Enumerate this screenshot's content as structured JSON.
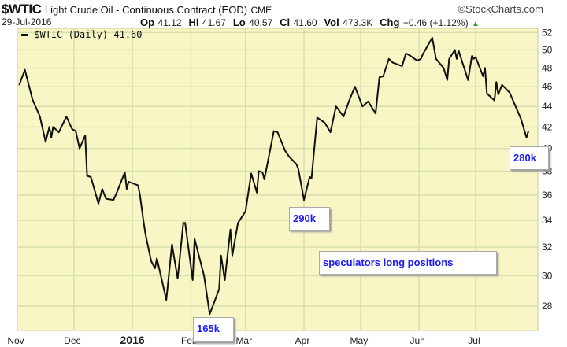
{
  "header": {
    "symbol": "$WTIC",
    "description": "Light Crude Oil - Continuous Contract (EOD)",
    "exchange": "CME",
    "source": "©StockCharts.com",
    "date": "29-Jul-2016",
    "stats": [
      {
        "label": "Op",
        "value": "41.12"
      },
      {
        "label": "Hi",
        "value": "41.67"
      },
      {
        "label": "Lo",
        "value": "40.57"
      },
      {
        "label": "Cl",
        "value": "41.60"
      },
      {
        "label": "Vol",
        "value": "473.3K"
      },
      {
        "label": "Chg",
        "value": "+0.46 (+1.12%)"
      }
    ],
    "change_direction": "up"
  },
  "colors": {
    "background": "#f8f6c4",
    "grid": "#d8dfae",
    "line": "#111111",
    "annotation_text": "#1a1aff",
    "up_arrow": "#2e9e2e"
  },
  "chart_data": {
    "type": "line",
    "title": "",
    "legend": {
      "text": "$WTIC (Daily) 41.60",
      "placement": "top-left"
    },
    "y_scale": "log",
    "ylim": [
      26.5,
      52.5
    ],
    "y_ticks": [
      28,
      30,
      32,
      34,
      36,
      38,
      40,
      42,
      44,
      46,
      48,
      50,
      52
    ],
    "y_axis_side": "right",
    "xlim": [
      "2015-11-01",
      "2016-08-03"
    ],
    "x_ticks": [
      {
        "label": "Nov",
        "date": "2015-11-01",
        "bold": false
      },
      {
        "label": "Dec",
        "date": "2015-12-01",
        "bold": false
      },
      {
        "label": "2016",
        "date": "2016-01-01",
        "bold": true
      },
      {
        "label": "Feb",
        "date": "2016-02-01",
        "bold": false
      },
      {
        "label": "Mar",
        "date": "2016-03-01",
        "bold": false
      },
      {
        "label": "Apr",
        "date": "2016-04-01",
        "bold": false
      },
      {
        "label": "May",
        "date": "2016-05-01",
        "bold": false
      },
      {
        "label": "Jun",
        "date": "2016-06-01",
        "bold": false
      },
      {
        "label": "Jul",
        "date": "2016-07-01",
        "bold": false
      }
    ],
    "grid": true,
    "series": [
      {
        "name": "$WTIC (Daily)",
        "points": [
          [
            "2015-11-02",
            46.2
          ],
          [
            "2015-11-05",
            47.8
          ],
          [
            "2015-11-09",
            44.7
          ],
          [
            "2015-11-13",
            43.0
          ],
          [
            "2015-11-16",
            40.6
          ],
          [
            "2015-11-18",
            42.0
          ],
          [
            "2015-11-19",
            41.0
          ],
          [
            "2015-11-20",
            42.0
          ],
          [
            "2015-11-23",
            41.5
          ],
          [
            "2015-11-27",
            43.0
          ],
          [
            "2015-11-30",
            41.8
          ],
          [
            "2015-12-02",
            41.6
          ],
          [
            "2015-12-04",
            40.0
          ],
          [
            "2015-12-07",
            41.2
          ],
          [
            "2015-12-08",
            37.6
          ],
          [
            "2015-12-10",
            37.5
          ],
          [
            "2015-12-14",
            35.3
          ],
          [
            "2015-12-16",
            36.5
          ],
          [
            "2015-12-18",
            35.7
          ],
          [
            "2015-12-22",
            35.6
          ],
          [
            "2015-12-24",
            36.3
          ],
          [
            "2015-12-28",
            37.9
          ],
          [
            "2015-12-29",
            36.5
          ],
          [
            "2015-12-30",
            37.1
          ],
          [
            "2016-01-04",
            36.8
          ],
          [
            "2016-01-05",
            36.0
          ],
          [
            "2016-01-07",
            33.8
          ],
          [
            "2016-01-08",
            32.9
          ],
          [
            "2016-01-11",
            31.0
          ],
          [
            "2016-01-13",
            30.5
          ],
          [
            "2016-01-14",
            31.2
          ],
          [
            "2016-01-19",
            28.4
          ],
          [
            "2016-01-22",
            32.2
          ],
          [
            "2016-01-25",
            29.8
          ],
          [
            "2016-01-28",
            33.8
          ],
          [
            "2016-01-29",
            33.8
          ],
          [
            "2016-02-02",
            29.7
          ],
          [
            "2016-02-03",
            32.6
          ],
          [
            "2016-02-08",
            30.0
          ],
          [
            "2016-02-11",
            27.5
          ],
          [
            "2016-02-16",
            29.1
          ],
          [
            "2016-02-17",
            31.4
          ],
          [
            "2016-02-19",
            29.7
          ],
          [
            "2016-02-22",
            33.3
          ],
          [
            "2016-02-23",
            31.4
          ],
          [
            "2016-02-25",
            33.0
          ],
          [
            "2016-02-26",
            33.8
          ],
          [
            "2016-03-01",
            34.7
          ],
          [
            "2016-03-04",
            37.8
          ],
          [
            "2016-03-07",
            36.2
          ],
          [
            "2016-03-08",
            38.0
          ],
          [
            "2016-03-10",
            37.9
          ],
          [
            "2016-03-11",
            37.3
          ],
          [
            "2016-03-16",
            41.6
          ],
          [
            "2016-03-18",
            41.5
          ],
          [
            "2016-03-22",
            39.8
          ],
          [
            "2016-03-24",
            39.3
          ],
          [
            "2016-03-28",
            38.6
          ],
          [
            "2016-03-29",
            38.2
          ],
          [
            "2016-04-01",
            35.6
          ],
          [
            "2016-04-04",
            37.5
          ],
          [
            "2016-04-05",
            37.4
          ],
          [
            "2016-04-08",
            42.9
          ],
          [
            "2016-04-12",
            42.4
          ],
          [
            "2016-04-15",
            41.5
          ],
          [
            "2016-04-18",
            44.0
          ],
          [
            "2016-04-22",
            43.0
          ],
          [
            "2016-04-25",
            44.6
          ],
          [
            "2016-04-28",
            46.0
          ],
          [
            "2016-05-02",
            44.0
          ],
          [
            "2016-05-05",
            44.5
          ],
          [
            "2016-05-09",
            43.3
          ],
          [
            "2016-05-11",
            47.0
          ],
          [
            "2016-05-13",
            47.1
          ],
          [
            "2016-05-16",
            49.0
          ],
          [
            "2016-05-18",
            48.6
          ],
          [
            "2016-05-23",
            48.2
          ],
          [
            "2016-05-25",
            49.6
          ],
          [
            "2016-05-27",
            49.4
          ],
          [
            "2016-05-31",
            48.8
          ],
          [
            "2016-06-02",
            49.0
          ],
          [
            "2016-06-03",
            49.5
          ],
          [
            "2016-06-08",
            51.4
          ],
          [
            "2016-06-10",
            49.0
          ],
          [
            "2016-06-14",
            48.0
          ],
          [
            "2016-06-16",
            46.7
          ],
          [
            "2016-06-17",
            49.0
          ],
          [
            "2016-06-20",
            50.0
          ],
          [
            "2016-06-21",
            49.0
          ],
          [
            "2016-06-22",
            49.9
          ],
          [
            "2016-06-27",
            46.7
          ],
          [
            "2016-06-29",
            49.3
          ],
          [
            "2016-06-30",
            49.0
          ],
          [
            "2016-07-01",
            49.2
          ],
          [
            "2016-07-05",
            47.1
          ],
          [
            "2016-07-06",
            48.0
          ],
          [
            "2016-07-07",
            45.3
          ],
          [
            "2016-07-11",
            44.6
          ],
          [
            "2016-07-12",
            46.5
          ],
          [
            "2016-07-13",
            45.2
          ],
          [
            "2016-07-15",
            46.2
          ],
          [
            "2016-07-19",
            45.4
          ],
          [
            "2016-07-25",
            42.8
          ],
          [
            "2016-07-28",
            41.0
          ],
          [
            "2016-07-29",
            41.6
          ]
        ]
      }
    ],
    "annotations": [
      {
        "text": "165k",
        "date": "2016-02-11"
      },
      {
        "text": "290k",
        "date": "2016-04-01"
      },
      {
        "text": "280k",
        "date": "2016-07-29"
      },
      {
        "text": "speculators long positions"
      }
    ]
  }
}
